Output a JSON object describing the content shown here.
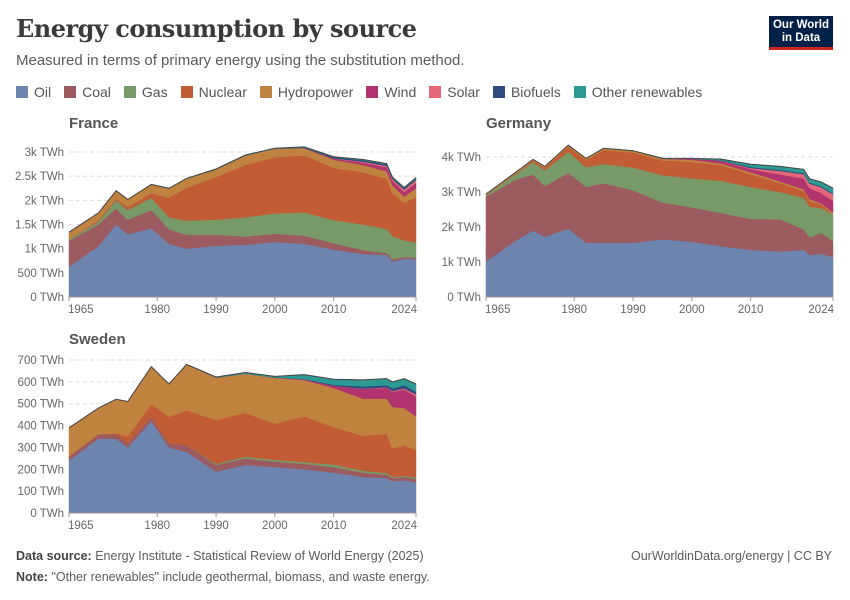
{
  "header": {
    "title": "Energy consumption by source",
    "subtitle": "Measured in terms of primary energy using the substitution method.",
    "logo_text": "Our World in Data"
  },
  "legend": [
    {
      "label": "Oil",
      "color": "#6d84ae"
    },
    {
      "label": "Coal",
      "color": "#9c5a61"
    },
    {
      "label": "Gas",
      "color": "#789a69"
    },
    {
      "label": "Nuclear",
      "color": "#c15c35"
    },
    {
      "label": "Hydropower",
      "color": "#c0823f"
    },
    {
      "label": "Wind",
      "color": "#b1346f"
    },
    {
      "label": "Solar",
      "color": "#e4687a"
    },
    {
      "label": "Biofuels",
      "color": "#2e4d7d"
    },
    {
      "label": "Other renewables",
      "color": "#2c9a93"
    }
  ],
  "chart_data": [
    {
      "type": "area",
      "stacked": true,
      "title": "France",
      "xlim": [
        1965,
        2024
      ],
      "xticks": [
        1965,
        1980,
        1990,
        2000,
        2010,
        2024
      ],
      "ylim": [
        0,
        3000
      ],
      "yticks": [
        {
          "v": 0,
          "label": "0 TWh"
        },
        {
          "v": 500,
          "label": "500 TWh"
        },
        {
          "v": 1000,
          "label": "1k TWh"
        },
        {
          "v": 1500,
          "label": "1.5k TWh"
        },
        {
          "v": 2000,
          "label": "2k TWh"
        },
        {
          "v": 2500,
          "label": "2.5k TWh"
        },
        {
          "v": 3000,
          "label": "3k TWh"
        }
      ],
      "grid": true,
      "x": [
        1965,
        1970,
        1973,
        1975,
        1979,
        1982,
        1985,
        1990,
        1995,
        2000,
        2005,
        2010,
        2015,
        2019,
        2020,
        2022,
        2024
      ],
      "series": [
        {
          "name": "Oil",
          "values": [
            630,
            1050,
            1500,
            1300,
            1420,
            1100,
            1000,
            1060,
            1080,
            1140,
            1100,
            980,
            890,
            870,
            740,
            790,
            780
          ]
        },
        {
          "name": "Coal",
          "values": [
            530,
            450,
            330,
            300,
            380,
            300,
            290,
            230,
            170,
            170,
            170,
            130,
            80,
            40,
            40,
            40,
            30
          ]
        },
        {
          "name": "Gas",
          "values": [
            30,
            60,
            170,
            200,
            250,
            250,
            290,
            310,
            400,
            420,
            480,
            480,
            530,
            500,
            480,
            340,
            320
          ]
        },
        {
          "name": "Nuclear",
          "values": [
            0,
            30,
            30,
            60,
            100,
            400,
            680,
            880,
            1080,
            1160,
            1180,
            1080,
            1080,
            1040,
            880,
            780,
            940
          ]
        },
        {
          "name": "Hydropower",
          "values": [
            150,
            150,
            170,
            160,
            180,
            200,
            190,
            160,
            200,
            180,
            150,
            170,
            150,
            150,
            170,
            130,
            180
          ]
        },
        {
          "name": "Wind",
          "values": [
            0,
            0,
            0,
            0,
            0,
            0,
            0,
            0,
            0,
            0,
            5,
            25,
            50,
            85,
            95,
            95,
            110
          ]
        },
        {
          "name": "Solar",
          "values": [
            0,
            0,
            0,
            0,
            0,
            0,
            0,
            0,
            0,
            0,
            0,
            2,
            20,
            30,
            32,
            45,
            60
          ]
        },
        {
          "name": "Biofuels",
          "values": [
            0,
            0,
            0,
            0,
            0,
            0,
            0,
            0,
            0,
            0,
            10,
            25,
            30,
            30,
            25,
            30,
            30
          ]
        },
        {
          "name": "Other renewables",
          "values": [
            0,
            0,
            0,
            0,
            0,
            0,
            5,
            8,
            8,
            8,
            10,
            10,
            15,
            15,
            15,
            15,
            20
          ]
        }
      ]
    },
    {
      "type": "area",
      "stacked": true,
      "title": "Germany",
      "xlim": [
        1965,
        2024
      ],
      "xticks": [
        1965,
        1980,
        1990,
        2000,
        2010,
        2024
      ],
      "ylim": [
        0,
        4000
      ],
      "yticks": [
        {
          "v": 0,
          "label": "0 TWh"
        },
        {
          "v": 1000,
          "label": "1k TWh"
        },
        {
          "v": 2000,
          "label": "2k TWh"
        },
        {
          "v": 3000,
          "label": "3k TWh"
        },
        {
          "v": 4000,
          "label": "4k TWh"
        }
      ],
      "grid": true,
      "x": [
        1965,
        1970,
        1973,
        1975,
        1979,
        1982,
        1985,
        1990,
        1995,
        2000,
        2005,
        2010,
        2015,
        2019,
        2020,
        2022,
        2024
      ],
      "series": [
        {
          "name": "Oil",
          "values": [
            1020,
            1600,
            1900,
            1720,
            1950,
            1550,
            1550,
            1550,
            1650,
            1580,
            1450,
            1350,
            1300,
            1350,
            1200,
            1230,
            1150
          ]
        },
        {
          "name": "Coal",
          "values": [
            1850,
            1750,
            1600,
            1450,
            1600,
            1600,
            1700,
            1500,
            1050,
            980,
            950,
            880,
            920,
            580,
            500,
            600,
            450
          ]
        },
        {
          "name": "Gas",
          "values": [
            30,
            150,
            350,
            450,
            600,
            560,
            550,
            650,
            780,
            830,
            920,
            910,
            780,
            900,
            880,
            710,
            760
          ]
        },
        {
          "name": "Nuclear",
          "values": [
            0,
            20,
            40,
            70,
            140,
            200,
            400,
            430,
            420,
            470,
            440,
            370,
            250,
            200,
            170,
            90,
            0
          ]
        },
        {
          "name": "Hydropower",
          "values": [
            40,
            40,
            40,
            40,
            50,
            50,
            50,
            50,
            50,
            60,
            55,
            55,
            50,
            50,
            50,
            45,
            60
          ]
        },
        {
          "name": "Wind",
          "values": [
            0,
            0,
            0,
            0,
            0,
            0,
            0,
            0,
            5,
            30,
            70,
            90,
            200,
            310,
            310,
            300,
            330
          ]
        },
        {
          "name": "Solar",
          "values": [
            0,
            0,
            0,
            0,
            0,
            0,
            0,
            0,
            0,
            0,
            5,
            30,
            100,
            120,
            130,
            160,
            180
          ]
        },
        {
          "name": "Biofuels",
          "values": [
            0,
            0,
            0,
            0,
            0,
            0,
            0,
            0,
            0,
            0,
            20,
            30,
            30,
            30,
            30,
            30,
            30
          ]
        },
        {
          "name": "Other renewables",
          "values": [
            0,
            0,
            0,
            0,
            0,
            0,
            0,
            0,
            10,
            10,
            30,
            80,
            100,
            110,
            110,
            120,
            150
          ]
        }
      ]
    },
    {
      "type": "area",
      "stacked": true,
      "title": "Sweden",
      "xlim": [
        1965,
        2024
      ],
      "xticks": [
        1965,
        1980,
        1990,
        2000,
        2010,
        2024
      ],
      "ylim": [
        0,
        700
      ],
      "yticks": [
        {
          "v": 0,
          "label": "0 TWh"
        },
        {
          "v": 100,
          "label": "100 TWh"
        },
        {
          "v": 200,
          "label": "200 TWh"
        },
        {
          "v": 300,
          "label": "300 TWh"
        },
        {
          "v": 400,
          "label": "400 TWh"
        },
        {
          "v": 500,
          "label": "500 TWh"
        },
        {
          "v": 600,
          "label": "600 TWh"
        },
        {
          "v": 700,
          "label": "700 TWh"
        }
      ],
      "grid": true,
      "x": [
        1965,
        1970,
        1973,
        1975,
        1979,
        1982,
        1985,
        1990,
        1995,
        2000,
        2005,
        2010,
        2015,
        2019,
        2020,
        2022,
        2024
      ],
      "series": [
        {
          "name": "Oil",
          "values": [
            240,
            340,
            340,
            300,
            420,
            300,
            280,
            190,
            220,
            210,
            200,
            185,
            165,
            160,
            145,
            150,
            140
          ]
        },
        {
          "name": "Coal",
          "values": [
            20,
            20,
            20,
            20,
            20,
            20,
            30,
            30,
            30,
            25,
            25,
            25,
            20,
            15,
            15,
            15,
            15
          ]
        },
        {
          "name": "Gas",
          "values": [
            0,
            0,
            0,
            0,
            0,
            0,
            0,
            5,
            8,
            8,
            8,
            12,
            8,
            8,
            5,
            5,
            8
          ]
        },
        {
          "name": "Nuclear",
          "values": [
            0,
            0,
            5,
            30,
            60,
            120,
            160,
            200,
            200,
            165,
            210,
            170,
            160,
            180,
            130,
            140,
            125
          ]
        },
        {
          "name": "Hydropower",
          "values": [
            130,
            120,
            155,
            160,
            170,
            150,
            210,
            195,
            180,
            210,
            165,
            180,
            170,
            160,
            190,
            170,
            155
          ]
        },
        {
          "name": "Wind",
          "values": [
            0,
            0,
            0,
            0,
            0,
            0,
            0,
            0,
            0,
            2,
            3,
            10,
            45,
            50,
            70,
            85,
            90
          ]
        },
        {
          "name": "Solar",
          "values": [
            0,
            0,
            0,
            0,
            0,
            0,
            0,
            0,
            0,
            0,
            0,
            0,
            1,
            2,
            3,
            5,
            10
          ]
        },
        {
          "name": "Biofuels",
          "values": [
            0,
            0,
            0,
            0,
            0,
            0,
            0,
            0,
            0,
            0,
            2,
            5,
            10,
            10,
            12,
            15,
            12
          ]
        },
        {
          "name": "Other renewables",
          "values": [
            0,
            0,
            0,
            0,
            0,
            0,
            0,
            2,
            5,
            5,
            20,
            25,
            30,
            30,
            30,
            30,
            35
          ]
        }
      ]
    }
  ],
  "footer": {
    "source_label": "Data source:",
    "source_text": "Energy Institute - Statistical Review of World Energy (2025)",
    "note_label": "Note:",
    "note_text": "\"Other renewables\" include geothermal, biomass, and waste energy.",
    "credit": "OurWorldinData.org/energy | CC BY"
  }
}
